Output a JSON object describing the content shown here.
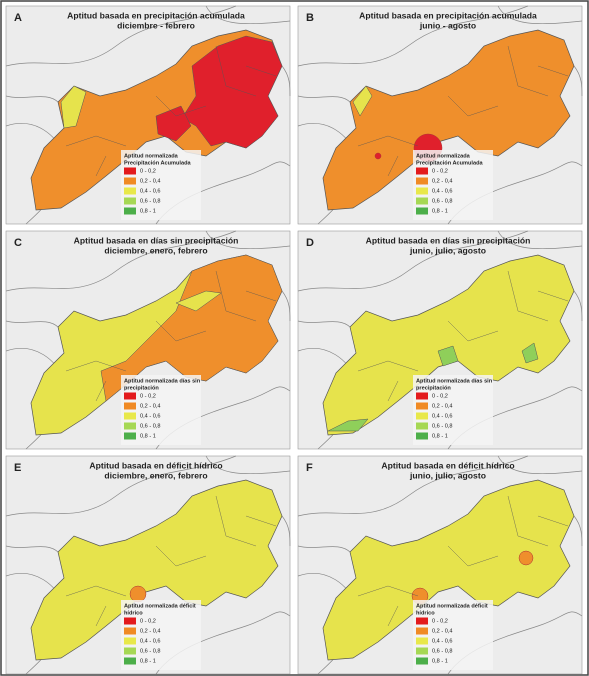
{
  "panels": [
    {
      "letter": "A",
      "title": [
        "Aptitud basada en precipitación acumulada",
        "diciembre - febrero"
      ],
      "legend": {
        "title": [
          "Aptitud normalizada",
          "Precipitación Acumulada"
        ],
        "items": [
          {
            "label": "0 - 0,2",
            "color": "#e31a1c"
          },
          {
            "label": "0,2 - 0,4",
            "color": "#f08a24"
          },
          {
            "label": "0,4 - 0,6",
            "color": "#e8e84a"
          },
          {
            "label": "0,6 - 0,8",
            "color": "#a6d854"
          },
          {
            "label": "0,8 - 1",
            "color": "#4daf4a"
          }
        ]
      }
    },
    {
      "letter": "B",
      "title": [
        "Aptitud basada en precipitación acumulada",
        "junio - agosto"
      ],
      "legend": {
        "title": [
          "Aptitud normalizada",
          "Precipitación Acumulada"
        ],
        "items": [
          {
            "label": "0 - 0,2",
            "color": "#e31a1c"
          },
          {
            "label": "0,2 - 0,4",
            "color": "#f08a24"
          },
          {
            "label": "0,4 - 0,6",
            "color": "#e8e84a"
          },
          {
            "label": "0,6 - 0,8",
            "color": "#a6d854"
          },
          {
            "label": "0,8 - 1",
            "color": "#4daf4a"
          }
        ]
      }
    },
    {
      "letter": "C",
      "title": [
        "Aptitud basada en días sin precipitación",
        "diciembre, enero, febrero"
      ],
      "legend": {
        "title": [
          "Aptitud normalizada días sin",
          "precipitación"
        ],
        "items": [
          {
            "label": "0 - 0,2",
            "color": "#e31a1c"
          },
          {
            "label": "0,2 - 0,4",
            "color": "#f08a24"
          },
          {
            "label": "0,4 - 0,6",
            "color": "#e8e84a"
          },
          {
            "label": "0,6 - 0,8",
            "color": "#a6d854"
          },
          {
            "label": "0,8 - 1",
            "color": "#4daf4a"
          }
        ]
      }
    },
    {
      "letter": "D",
      "title": [
        "Aptitud basada en días sin precipitación",
        "junio, julio, agosto"
      ],
      "legend": {
        "title": [
          "Aptitud normalizada días sin",
          "precipitación"
        ],
        "items": [
          {
            "label": "0 - 0,2",
            "color": "#e31a1c"
          },
          {
            "label": "0,2 - 0,4",
            "color": "#f08a24"
          },
          {
            "label": "0,4 - 0,6",
            "color": "#e8e84a"
          },
          {
            "label": "0,6 - 0,8",
            "color": "#a6d854"
          },
          {
            "label": "0,8 - 1",
            "color": "#4daf4a"
          }
        ]
      }
    },
    {
      "letter": "E",
      "title": [
        "Aptitud basada en déficit hídrico",
        "diciembre, enero, febrero"
      ],
      "legend": {
        "title": [
          "Aptitud normalizada déficit",
          "hídrico"
        ],
        "items": [
          {
            "label": "0 - 0,2",
            "color": "#e31a1c"
          },
          {
            "label": "0,2 - 0,4",
            "color": "#f08a24"
          },
          {
            "label": "0,4 - 0,6",
            "color": "#e8e84a"
          },
          {
            "label": "0,6 - 0,8",
            "color": "#a6d854"
          },
          {
            "label": "0,8 - 1",
            "color": "#4daf4a"
          }
        ]
      }
    },
    {
      "letter": "F",
      "title": [
        "Aptitud basada en déficit hídrico",
        "junio, julio, agosto"
      ],
      "legend": {
        "title": [
          "Aptitud normalizada déficit",
          "hídrico"
        ],
        "items": [
          {
            "label": "0 - 0,2",
            "color": "#e31a1c"
          },
          {
            "label": "0,2 - 0,4",
            "color": "#f08a24"
          },
          {
            "label": "0,4 - 0,6",
            "color": "#e8e84a"
          },
          {
            "label": "0,6 - 0,8",
            "color": "#a6d854"
          },
          {
            "label": "0,8 - 1",
            "color": "#4daf4a"
          }
        ]
      }
    }
  ]
}
